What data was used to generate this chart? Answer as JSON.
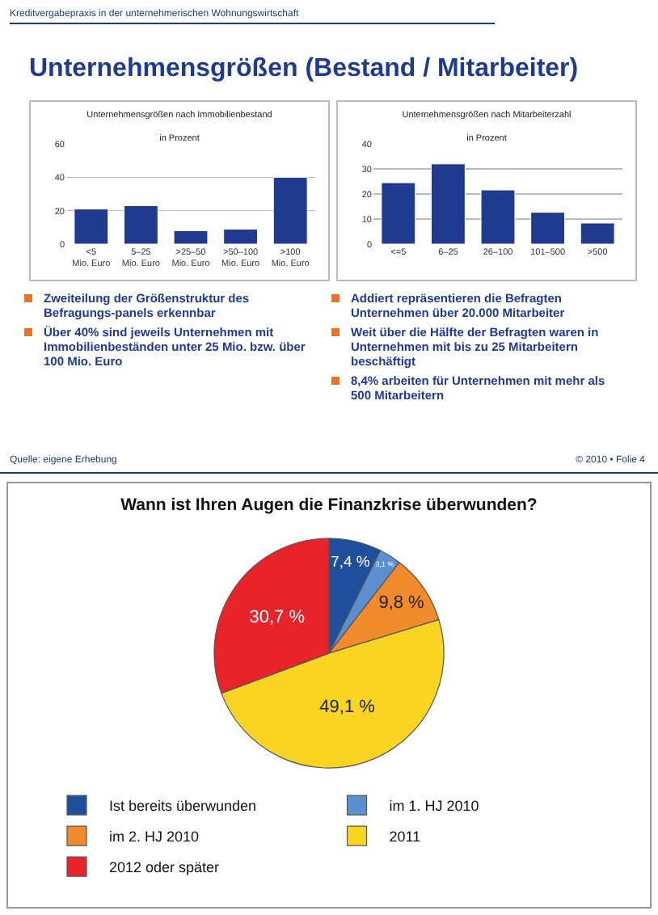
{
  "chart_data": [
    {
      "type": "other",
      "title": "Unternehmensgrößen (Bestand / Mitarbeiter)",
      "annotations": [
        "Kreditvergabepraxis in der unternehmerischen Wohnungswirtschaft",
        "Quelle: eigene Erhebung",
        "© 2010 • Folie 4"
      ]
    },
    {
      "type": "bar",
      "title": "Unternehmensgrößen nach Immobilienbestand",
      "subtitle": "in Prozent",
      "categories": [
        "<5 Mio. Euro",
        "5–25 Mio. Euro",
        ">25–50 Mio. Euro",
        ">50–100 Mio. Euro",
        ">100 Mio. Euro"
      ],
      "values": [
        21,
        23,
        8,
        9,
        40
      ],
      "color": "#1f3a8f",
      "ylim": [
        0,
        60
      ],
      "yticks": [
        0,
        20,
        40,
        60
      ],
      "grid": "y",
      "annotations": [
        "Zweiteilung der Größenstruktur des Befragungs-panels erkennbar",
        "Über 40% sind jeweils Unternehmen mit Immobilienbeständen unter 25 Mio. bzw. über 100 Mio. Euro"
      ]
    },
    {
      "type": "bar",
      "title": "Unternehmensgrößen nach Mitarbeiterzahl",
      "subtitle": "in Prozent",
      "categories": [
        "<=5",
        "6–25",
        "26–100",
        "101–500",
        ">500"
      ],
      "values": [
        24.5,
        32,
        21.6,
        12.7,
        8.4
      ],
      "color": "#1f3a8f",
      "ylim": [
        0,
        40
      ],
      "yticks": [
        0,
        10,
        20,
        30,
        40
      ],
      "grid": "y",
      "annotations": [
        "Addiert repräsentieren die Befragten Unternehmen über 20.000 Mitarbeiter",
        "Weit über die Hälfte der Befragten waren in Unternehmen mit bis zu 25 Mitarbeitern beschäftigt",
        "8,4% arbeiten für Unternehmen mit mehr als 500 Mitarbeitern"
      ]
    },
    {
      "type": "pie",
      "title": "Wann ist Ihren Augen die Finanzkrise überwunden?",
      "categories": [
        "Ist bereits überwunden",
        "im 1. HJ 2010",
        "im 2. HJ 2010",
        "2011",
        "2012 oder später"
      ],
      "values": [
        7.4,
        3.1,
        9.8,
        49.1,
        30.7
      ],
      "colors": [
        "#1f4e9c",
        "#5b8fd0",
        "#f08a2a",
        "#f9d423",
        "#e8232a"
      ],
      "value_labels": [
        "7,4 %",
        "3,1 %",
        "9,8 %",
        "49,1 %",
        "30,7 %"
      ],
      "legend": "bottom"
    }
  ]
}
